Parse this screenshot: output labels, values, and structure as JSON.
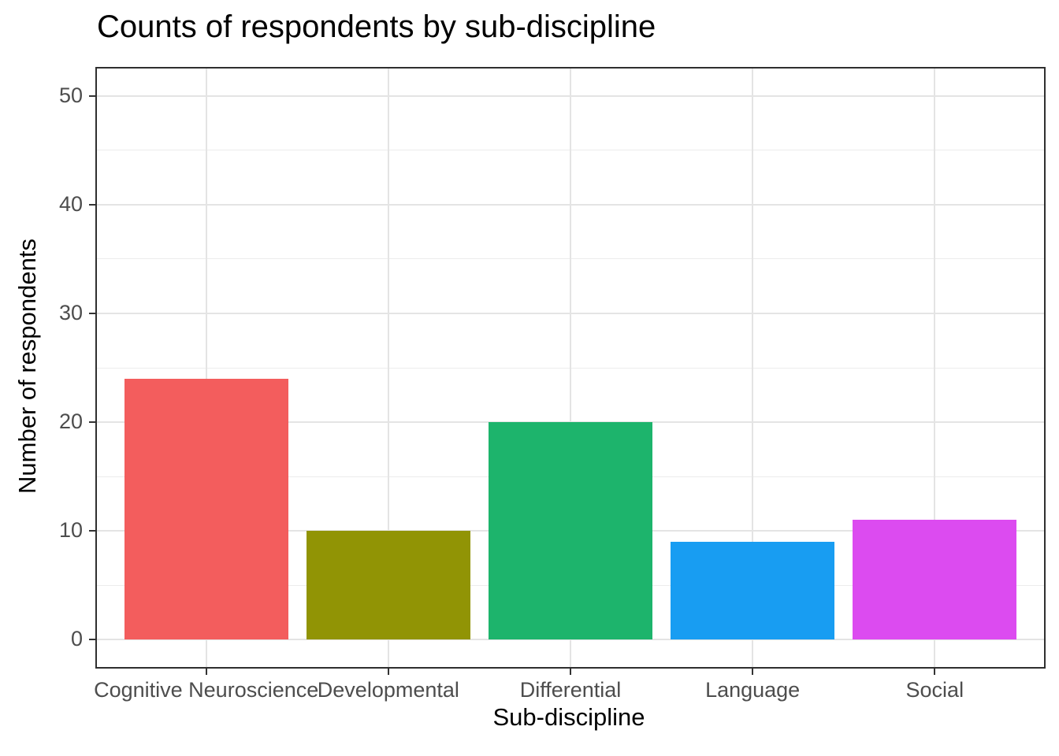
{
  "title": "Counts of respondents by sub-discipline",
  "chart_data": {
    "type": "bar",
    "title": "Counts of respondents by sub-discipline",
    "xlabel": "Sub-discipline",
    "ylabel": "Number of respondents",
    "categories": [
      "Cognitive Neuroscience",
      "Developmental",
      "Differential",
      "Language",
      "Social"
    ],
    "values": [
      24,
      10,
      20,
      9,
      11
    ],
    "bar_colors": [
      "#f35d5d",
      "#919405",
      "#1db46c",
      "#189df2",
      "#dc4bf0"
    ],
    "ylim": [
      0,
      50
    ],
    "y_major_ticks": [
      0,
      10,
      20,
      30,
      40,
      50
    ],
    "y_minor_ticks": [
      5,
      15,
      25,
      35,
      45
    ],
    "grid": "on",
    "legend": "none",
    "theme": {
      "background": "#ffffff",
      "panel_border_color": "#2f2f2f",
      "major_grid_color": "#e4e4e4",
      "minor_grid_color": "#ececec",
      "tick_color": "#333333",
      "tick_label_color": "#4d4d4d",
      "axis_title_color": "#000000",
      "title_color": "#000000"
    }
  }
}
